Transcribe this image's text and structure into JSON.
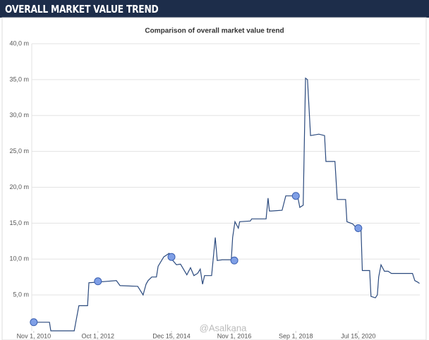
{
  "header": {
    "title": "OVERALL MARKET VALUE TREND"
  },
  "chart_data": {
    "type": "line",
    "title": "Comparison of overall market value trend",
    "watermark": "@Asalkana",
    "xlim": [
      2010.77,
      2022.38
    ],
    "xticks": [
      {
        "value": 2010.83,
        "label": "Nov 1, 2010"
      },
      {
        "value": 2012.75,
        "label": "Oct 1, 2012"
      },
      {
        "value": 2014.95,
        "label": "Dec 15, 2014"
      },
      {
        "value": 2016.83,
        "label": "Nov 1, 2016"
      },
      {
        "value": 2018.67,
        "label": "Sep 1, 2018"
      },
      {
        "value": 2020.54,
        "label": "Jul 15, 2020"
      }
    ],
    "ylim": [
      0,
      40
    ],
    "yticks": [
      {
        "value": 5,
        "label": "5,0 m"
      },
      {
        "value": 10,
        "label": "10,0 m"
      },
      {
        "value": 15,
        "label": "15,0 m"
      },
      {
        "value": 20,
        "label": "20,0 m"
      },
      {
        "value": 25,
        "label": "25,0 m"
      },
      {
        "value": 30,
        "label": "30,0 m"
      },
      {
        "value": 35,
        "label": "35,0 m"
      },
      {
        "value": 40,
        "label": "40,0 m"
      }
    ],
    "grid": true,
    "series": [
      {
        "color": "#2b4a7e",
        "marker": "none",
        "x": [
          2010.83,
          2011.3,
          2011.34,
          2011.51,
          2012.04,
          2012.1,
          2012.18,
          2012.44,
          2012.48,
          2012.77,
          2013.3,
          2013.41,
          2013.94,
          2014.1,
          2014.19,
          2014.25,
          2014.36,
          2014.5,
          2014.55,
          2014.72,
          2014.88,
          2014.99,
          2015.1,
          2015.22,
          2015.41,
          2015.52,
          2015.62,
          2015.73,
          2015.81,
          2015.88,
          2015.94,
          2016.15,
          2016.26,
          2016.32,
          2016.47,
          2016.66,
          2016.74,
          2016.78,
          2016.85,
          2016.95,
          2016.99,
          2017.31,
          2017.35,
          2017.78,
          2017.84,
          2017.88,
          2017.94,
          2018.26,
          2018.37,
          2018.6,
          2018.72,
          2018.79,
          2018.89,
          2018.96,
          2019.02,
          2019.11,
          2019.36,
          2019.53,
          2019.57,
          2019.84,
          2019.91,
          2020.16,
          2020.2,
          2020.37,
          2020.49,
          2020.62,
          2020.66,
          2020.88,
          2020.92,
          2021.05,
          2021.11,
          2021.15,
          2021.22,
          2021.32,
          2021.43,
          2021.53,
          2022.16,
          2022.23,
          2022.31,
          2022.37
        ],
        "values": [
          1.2,
          1.2,
          0,
          0,
          0,
          1.5,
          3.5,
          3.5,
          6.7,
          6.8,
          7.0,
          6.3,
          6.2,
          5.0,
          6.5,
          7.0,
          7.5,
          7.5,
          9.0,
          10.3,
          10.8,
          9.8,
          9.2,
          9.3,
          7.8,
          8.8,
          7.7,
          8.0,
          8.6,
          6.5,
          7.7,
          7.7,
          13.0,
          9.8,
          9.9,
          9.9,
          9.9,
          13.0,
          15.2,
          14.3,
          15.2,
          15.3,
          15.6,
          15.6,
          18.5,
          16.7,
          16.7,
          16.8,
          18.8,
          18.8,
          18.9,
          17.2,
          17.5,
          35.2,
          35.0,
          27.2,
          27.4,
          27.2,
          23.6,
          23.6,
          18.3,
          18.3,
          15.2,
          14.9,
          14.3,
          14.3,
          8.4,
          8.4,
          4.8,
          4.6,
          5.0,
          7.5,
          9.2,
          8.3,
          8.3,
          8.0,
          8.0,
          7.0,
          6.8,
          6.6
        ]
      },
      {
        "color": "#7f9fe6",
        "marker": "circle",
        "x": [
          2010.83,
          2012.75,
          2014.95,
          2016.83,
          2018.67,
          2020.54
        ],
        "values": [
          1.2,
          6.9,
          10.3,
          9.8,
          18.8,
          14.3
        ]
      }
    ]
  }
}
